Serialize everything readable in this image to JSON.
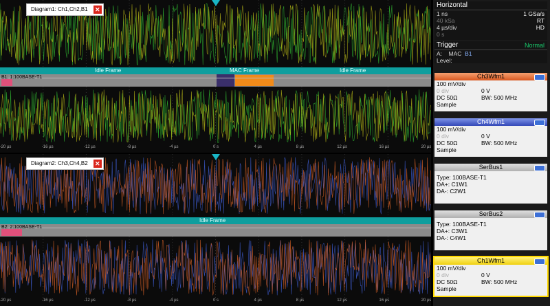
{
  "diagram1": {
    "tab": "Diagram1: Ch1,Ch2,B1",
    "bus_label": "B1: 1:100BASE-T1",
    "frames": [
      "Idle Frame",
      "MAC Frame",
      "Idle Frame"
    ],
    "axis": [
      "-20 µs",
      "-16 µs",
      "-12 µs",
      "-8 µs",
      "-4 µs",
      "0 s",
      "4 µs",
      "8 µs",
      "12 µs",
      "16 µs",
      "20 µs"
    ],
    "colors": {
      "a": "#2ea82e",
      "b": "#c8c818"
    }
  },
  "diagram2": {
    "tab": "Diagram2: Ch3,Ch4,B2",
    "bus_label": "B2: 2:100BASE-T1",
    "frames": [
      "Idle Frame"
    ],
    "axis": [
      "-20 µs",
      "-16 µs",
      "-12 µs",
      "-8 µs",
      "-4 µs",
      "0 s",
      "4 µs",
      "8 µs",
      "12 µs",
      "16 µs",
      "20 µs"
    ],
    "colors": {
      "a": "#3a55c0",
      "b": "#e8682a"
    }
  },
  "horizontal": {
    "title": "Horizontal",
    "rows": [
      {
        "l": "1 ns",
        "r": "1 GSa/s"
      },
      {
        "l": "40 kSa",
        "r": "RT"
      },
      {
        "l": "4 µs/div",
        "r": "HD"
      },
      {
        "l": "0 s",
        "r": ""
      }
    ]
  },
  "trigger": {
    "title": "Trigger",
    "mode": "Normal",
    "source_prefix": "A:",
    "source_type": "MAC",
    "source_bus": "B1",
    "level_label": "Level:"
  },
  "channels": [
    {
      "name": "Ch3Wfm1",
      "color": "#e8682a",
      "scale": "100 mV/div",
      "pos": "0 div",
      "offset": "0 V",
      "coupling": "DC 50Ω",
      "bw": "BW: 500 MHz",
      "acq": "Sample"
    },
    {
      "name": "Ch4Wfm1",
      "color": "#3a55c0",
      "scale": "100 mV/div",
      "pos": "0 div",
      "offset": "0 V",
      "coupling": "DC 50Ω",
      "bw": "BW: 500 MHz",
      "acq": "Sample"
    }
  ],
  "serbus": [
    {
      "name": "SerBus1",
      "type": "Type: 100BASE-T1",
      "dap": "DA+: C1W1",
      "dam": "DA-:  C2W1"
    },
    {
      "name": "SerBus2",
      "type": "Type: 100BASE-T1",
      "dap": "DA+: C3W1",
      "dam": "DA-:  C4W1"
    }
  ],
  "ch1": {
    "name": "Ch1Wfm1",
    "color": "#ffe83a",
    "scale": "100 mV/div",
    "pos": "0 div",
    "offset": "0 V",
    "coupling": "DC 50Ω",
    "bw": "BW: 500 MHz",
    "acq": "Sample"
  }
}
